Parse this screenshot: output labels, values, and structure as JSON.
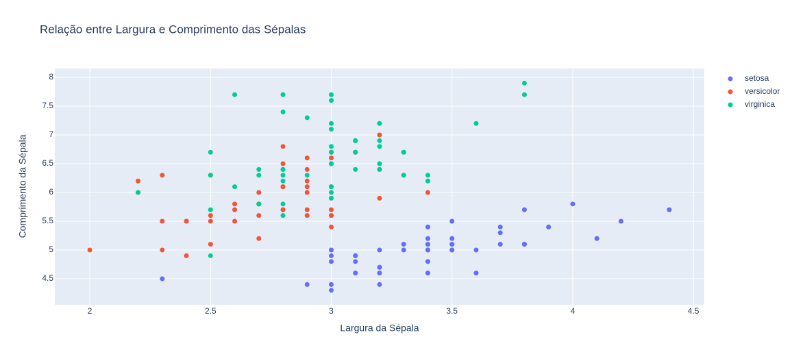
{
  "chart_data": {
    "type": "scatter",
    "title": "Relação entre Largura e Comprimento das Sépalas",
    "x_label": "Largura da Sépala",
    "y_label": "Comprimento da Sépala",
    "xlim": [
      1.855,
      4.545
    ],
    "ylim": [
      4.048,
      8.155
    ],
    "xticks": [
      2,
      2.5,
      3,
      3.5,
      4,
      4.5
    ],
    "yticks": [
      4.5,
      5,
      5.5,
      6,
      6.5,
      7,
      7.5,
      8
    ],
    "grid": true,
    "legend": "right",
    "series": [
      {
        "name": "setosa",
        "color": "#636efa",
        "x": [
          3.5,
          3.0,
          3.2,
          3.1,
          3.6,
          3.9,
          3.4,
          3.4,
          2.9,
          3.1,
          3.7,
          3.4,
          3.0,
          3.0,
          4.0,
          4.4,
          3.9,
          3.5,
          3.8,
          3.8,
          3.4,
          3.7,
          3.6,
          3.3,
          3.4,
          3.0,
          3.4,
          3.5,
          3.4,
          3.2,
          3.1,
          3.4,
          4.1,
          4.2,
          3.1,
          3.2,
          3.5,
          3.1,
          3.0,
          3.4,
          3.5,
          2.3,
          3.2,
          3.5,
          3.8,
          3.0,
          3.8,
          3.2,
          3.7,
          3.3
        ],
        "y": [
          5.1,
          4.9,
          4.7,
          4.6,
          5.0,
          5.4,
          4.6,
          5.0,
          4.4,
          4.9,
          5.4,
          4.8,
          4.8,
          4.3,
          5.8,
          5.7,
          5.4,
          5.1,
          5.7,
          5.1,
          5.4,
          5.1,
          4.6,
          5.1,
          4.8,
          5.0,
          5.0,
          5.2,
          5.2,
          4.7,
          4.8,
          5.4,
          5.2,
          5.5,
          4.9,
          5.0,
          5.5,
          4.9,
          4.4,
          5.1,
          5.0,
          4.5,
          4.4,
          5.0,
          5.1,
          4.8,
          5.1,
          4.6,
          5.3,
          5.0
        ]
      },
      {
        "name": "versicolor",
        "color": "#ef553b",
        "x": [
          3.2,
          3.2,
          3.1,
          2.3,
          2.8,
          2.8,
          3.3,
          2.4,
          2.9,
          2.7,
          2.0,
          3.0,
          2.2,
          2.9,
          2.9,
          3.1,
          3.0,
          2.7,
          2.2,
          2.5,
          3.2,
          2.8,
          2.5,
          2.8,
          2.9,
          3.0,
          2.8,
          3.0,
          2.9,
          2.6,
          2.4,
          2.4,
          2.7,
          2.7,
          3.0,
          3.4,
          3.1,
          2.3,
          3.0,
          2.5,
          2.6,
          3.0,
          2.6,
          2.3,
          2.7,
          3.0,
          2.9,
          2.9,
          2.5,
          2.8
        ],
        "y": [
          7.0,
          6.4,
          6.9,
          5.5,
          6.5,
          5.7,
          6.3,
          4.9,
          6.6,
          5.2,
          5.0,
          5.9,
          6.0,
          6.1,
          5.6,
          6.7,
          5.6,
          5.8,
          6.2,
          5.6,
          5.9,
          6.1,
          6.3,
          6.1,
          6.4,
          6.6,
          6.8,
          6.7,
          6.0,
          5.7,
          5.5,
          5.5,
          5.8,
          6.0,
          5.4,
          6.0,
          6.7,
          6.3,
          5.6,
          5.5,
          5.5,
          6.1,
          5.8,
          5.0,
          5.6,
          5.7,
          5.7,
          6.2,
          5.1,
          5.7
        ]
      },
      {
        "name": "virginica",
        "color": "#00cc96",
        "x": [
          3.3,
          2.7,
          3.0,
          2.9,
          3.0,
          3.0,
          2.5,
          2.9,
          2.5,
          3.6,
          3.2,
          2.7,
          3.0,
          2.5,
          2.8,
          3.2,
          3.0,
          3.8,
          2.6,
          2.2,
          3.2,
          2.8,
          2.8,
          2.7,
          3.3,
          3.2,
          2.8,
          3.0,
          2.8,
          3.0,
          2.8,
          3.8,
          2.8,
          2.8,
          2.6,
          3.0,
          3.4,
          3.1,
          3.0,
          3.1,
          3.1,
          3.1,
          2.7,
          3.2,
          3.3,
          3.0,
          2.5,
          3.0,
          3.4,
          3.0
        ],
        "y": [
          6.3,
          5.8,
          7.1,
          6.3,
          6.5,
          7.6,
          4.9,
          7.3,
          6.7,
          7.2,
          6.5,
          6.4,
          6.8,
          5.7,
          5.8,
          6.4,
          6.5,
          7.7,
          7.7,
          6.0,
          6.9,
          5.6,
          7.7,
          6.3,
          6.7,
          7.2,
          6.2,
          6.1,
          6.4,
          7.2,
          7.4,
          7.9,
          6.4,
          6.3,
          6.1,
          7.7,
          6.3,
          6.4,
          6.0,
          6.9,
          6.7,
          6.9,
          5.8,
          6.8,
          6.7,
          6.7,
          6.3,
          6.5,
          6.2,
          5.9
        ]
      }
    ]
  }
}
